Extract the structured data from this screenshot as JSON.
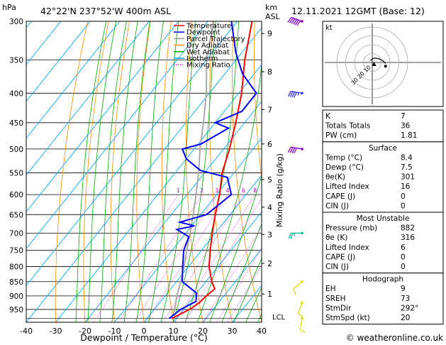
{
  "header": {
    "location": "42°22'N  237°52'W  400m  ASL",
    "datetime": "12.11.2021  12GMT  (Base: 12)"
  },
  "axes": {
    "p_unit": "hPa",
    "km_unit_1": "km",
    "km_unit_2": "ASL",
    "xlabel": "Dewpoint / Temperature (°C)",
    "mixing_ratio_label": "Mixing Ratio (g/kg)",
    "lcl_label": "LCL",
    "hodograph_unit": "kt"
  },
  "footer": {
    "credit": "© weatheronline.co.uk"
  },
  "legend": [
    {
      "label": "Temperature",
      "color": "#ff0000",
      "style": "solid"
    },
    {
      "label": "Dewpoint",
      "color": "#0000ff",
      "style": "solid"
    },
    {
      "label": "Parcel Trajectory",
      "color": "#999999",
      "style": "solid"
    },
    {
      "label": "Dry Adiabat",
      "color": "#ff8c00",
      "style": "solid"
    },
    {
      "label": "Wet Adiabat",
      "color": "#00aa00",
      "style": "solid"
    },
    {
      "label": "Isotherm",
      "color": "#00aaff",
      "style": "solid"
    },
    {
      "label": "Mixing Ratio",
      "color": "#ff00ff",
      "style": "dotted"
    }
  ],
  "indices": {
    "top": [
      {
        "label": "K",
        "value": "7"
      },
      {
        "label": "Totals Totals",
        "value": "36"
      },
      {
        "label": "PW (cm)",
        "value": "1.81"
      }
    ],
    "surface": {
      "title": "Surface",
      "rows": [
        {
          "label": "Temp (°C)",
          "value": "8.4"
        },
        {
          "label": "Dewp (°C)",
          "value": "7.5"
        },
        {
          "label": "θe(K)",
          "value": "301"
        },
        {
          "label": "Lifted Index",
          "value": "16"
        },
        {
          "label": "CAPE (J)",
          "value": "0"
        },
        {
          "label": "CIN (J)",
          "value": "0"
        }
      ]
    },
    "most_unstable": {
      "title": "Most Unstable",
      "rows": [
        {
          "label": "Pressure (mb)",
          "value": "882"
        },
        {
          "label": "θe (K)",
          "value": "316"
        },
        {
          "label": "Lifted Index",
          "value": "6"
        },
        {
          "label": "CAPE (J)",
          "value": "0"
        },
        {
          "label": "CIN (J)",
          "value": "0"
        }
      ]
    },
    "hodograph": {
      "title": "Hodograph",
      "rows": [
        {
          "label": "EH",
          "value": "9"
        },
        {
          "label": "SREH",
          "value": "73"
        },
        {
          "label": "StmDir",
          "value": "292°"
        },
        {
          "label": "StmSpd (kt)",
          "value": "20"
        }
      ]
    }
  },
  "chart_data": {
    "type": "skew-t",
    "title": "42°22'N  237°52'W  400m  ASL",
    "xlabel": "Dewpoint / Temperature (°C)",
    "ylabel": "hPa",
    "y_scale": "log",
    "xlim": [
      -40,
      40
    ],
    "ylim": [
      1000,
      300
    ],
    "grid": true,
    "x_ticks": [
      "-40",
      "-30",
      "-20",
      "-10",
      "0",
      "10",
      "20",
      "30",
      "40"
    ],
    "p_ticks": [
      300,
      350,
      400,
      450,
      500,
      550,
      600,
      650,
      700,
      750,
      800,
      850,
      900,
      950
    ],
    "km_ticks": [
      {
        "label": "9",
        "p": 315
      },
      {
        "label": "8",
        "p": 367
      },
      {
        "label": "7",
        "p": 427
      },
      {
        "label": "6",
        "p": 490
      },
      {
        "label": "5",
        "p": 565
      },
      {
        "label": "4",
        "p": 631
      },
      {
        "label": "3",
        "p": 704
      },
      {
        "label": "2",
        "p": 790
      },
      {
        "label": "1",
        "p": 893
      }
    ],
    "mixing_ratio_lines": [
      "1",
      "2",
      "3",
      "4",
      "6",
      "8",
      "10",
      "15",
      "20",
      "25"
    ],
    "isotherm_step": 10,
    "temperature": [
      {
        "p": 985,
        "t": 8.4
      },
      {
        "p": 950,
        "t": 12
      },
      {
        "p": 925,
        "t": 13.5
      },
      {
        "p": 900,
        "t": 14
      },
      {
        "p": 875,
        "t": 15
      },
      {
        "p": 850,
        "t": 12
      },
      {
        "p": 800,
        "t": 7
      },
      {
        "p": 750,
        "t": 3
      },
      {
        "p": 700,
        "t": -1
      },
      {
        "p": 650,
        "t": -5
      },
      {
        "p": 600,
        "t": -9
      },
      {
        "p": 550,
        "t": -14
      },
      {
        "p": 500,
        "t": -18
      },
      {
        "p": 450,
        "t": -23
      },
      {
        "p": 400,
        "t": -29
      },
      {
        "p": 350,
        "t": -37
      },
      {
        "p": 300,
        "t": -45
      }
    ],
    "dewpoint": [
      {
        "p": 985,
        "t": 7.5
      },
      {
        "p": 950,
        "t": 9
      },
      {
        "p": 920,
        "t": 12
      },
      {
        "p": 890,
        "t": 10
      },
      {
        "p": 850,
        "t": 2
      },
      {
        "p": 800,
        "t": -2
      },
      {
        "p": 750,
        "t": -6
      },
      {
        "p": 710,
        "t": -8
      },
      {
        "p": 690,
        "t": -14
      },
      {
        "p": 680,
        "t": -9
      },
      {
        "p": 670,
        "t": -15
      },
      {
        "p": 650,
        "t": -8
      },
      {
        "p": 600,
        "t": -5
      },
      {
        "p": 560,
        "t": -11
      },
      {
        "p": 545,
        "t": -22
      },
      {
        "p": 520,
        "t": -30
      },
      {
        "p": 500,
        "t": -34
      },
      {
        "p": 490,
        "t": -29
      },
      {
        "p": 460,
        "t": -24
      },
      {
        "p": 450,
        "t": -30
      },
      {
        "p": 430,
        "t": -24
      },
      {
        "p": 400,
        "t": -24
      },
      {
        "p": 370,
        "t": -34
      },
      {
        "p": 340,
        "t": -42
      },
      {
        "p": 300,
        "t": -52
      }
    ],
    "parcel": [
      {
        "p": 985,
        "t": 8.4
      },
      {
        "p": 950,
        "t": 7
      },
      {
        "p": 900,
        "t": 4
      },
      {
        "p": 850,
        "t": 1.5
      },
      {
        "p": 800,
        "t": -1.5
      },
      {
        "p": 750,
        "t": -5
      },
      {
        "p": 700,
        "t": -8.5
      },
      {
        "p": 650,
        "t": -12.5
      },
      {
        "p": 600,
        "t": -17
      },
      {
        "p": 550,
        "t": -22
      },
      {
        "p": 500,
        "t": -28
      },
      {
        "p": 450,
        "t": -34
      },
      {
        "p": 400,
        "t": -41
      },
      {
        "p": 350,
        "t": -50
      },
      {
        "p": 300,
        "t": -58
      }
    ],
    "wind_barbs": [
      {
        "p": 300,
        "dir": 290,
        "speed": 60,
        "color": "#8800cc"
      },
      {
        "p": 400,
        "dir": 280,
        "speed": 45,
        "color": "#3333ff"
      },
      {
        "p": 500,
        "dir": 280,
        "speed": 40,
        "color": "#8800cc"
      },
      {
        "p": 700,
        "dir": 270,
        "speed": 25,
        "color": "#00bb99"
      },
      {
        "p": 850,
        "dir": 230,
        "speed": 10,
        "color": "#dddd00"
      },
      {
        "p": 925,
        "dir": 200,
        "speed": 10,
        "color": "#dddd00"
      },
      {
        "p": 985,
        "dir": 190,
        "speed": 10,
        "color": "#dddd00"
      }
    ],
    "hodograph": {
      "rings_kt": [
        10,
        20,
        30,
        40
      ],
      "ring_labels": [
        "10",
        "20",
        "30"
      ],
      "points_kt": [
        {
          "u": -2,
          "v": 2
        },
        {
          "u": 0,
          "v": 4
        },
        {
          "u": 3,
          "v": 5
        },
        {
          "u": 8,
          "v": 4
        },
        {
          "u": 12,
          "v": 2
        },
        {
          "u": 15,
          "v": -1
        }
      ],
      "storm_motion_kt": {
        "u": 2,
        "v": 0
      }
    }
  }
}
